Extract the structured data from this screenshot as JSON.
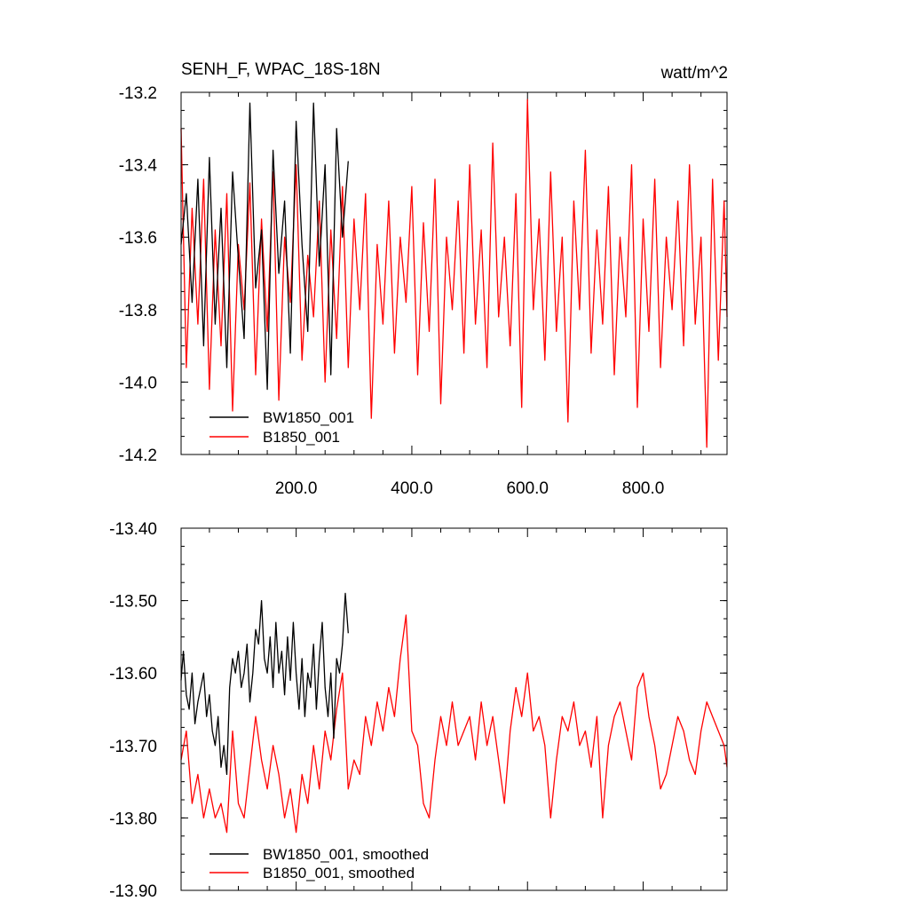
{
  "chart_data": [
    {
      "type": "line",
      "title_left": "SENH_F, WPAC_18S-18N",
      "title_right": "watt/m^2",
      "xlim": [
        1,
        945
      ],
      "ylim": [
        -14.2,
        -13.2
      ],
      "y_ticks": [
        -13.2,
        -13.4,
        -13.6,
        -13.8,
        -14.0,
        -14.2
      ],
      "y_tick_labels": [
        "-13.2",
        "-13.4",
        "-13.6",
        "-13.8",
        "-14.0",
        "-14.2"
      ],
      "x_ticks": [
        200,
        400,
        600,
        800
      ],
      "x_tick_labels": [
        "200.0",
        "400.0",
        "600.0",
        "800.0"
      ],
      "legend": {
        "placement": "bottom-left"
      },
      "series": [
        {
          "name": "BW1850_001",
          "color": "#000000",
          "x": [
            1,
            10,
            20,
            30,
            40,
            50,
            60,
            70,
            80,
            90,
            100,
            110,
            120,
            130,
            140,
            150,
            160,
            170,
            180,
            190,
            200,
            210,
            220,
            230,
            240,
            250,
            260,
            270,
            280,
            290
          ],
          "y": [
            -13.62,
            -13.48,
            -13.78,
            -13.44,
            -13.9,
            -13.38,
            -13.84,
            -13.52,
            -13.96,
            -13.42,
            -13.66,
            -13.88,
            -13.23,
            -13.74,
            -13.58,
            -14.02,
            -13.36,
            -13.7,
            -13.5,
            -13.92,
            -13.28,
            -13.62,
            -13.86,
            -13.23,
            -13.68,
            -13.4,
            -13.98,
            -13.3,
            -13.6,
            -13.39
          ]
        },
        {
          "name": "B1850_001",
          "color": "#ff0000",
          "x": [
            1,
            10,
            20,
            30,
            40,
            50,
            60,
            70,
            80,
            90,
            100,
            110,
            120,
            130,
            140,
            150,
            160,
            170,
            180,
            190,
            200,
            210,
            220,
            230,
            240,
            250,
            260,
            270,
            280,
            290,
            300,
            310,
            320,
            330,
            340,
            350,
            360,
            370,
            380,
            390,
            400,
            410,
            420,
            430,
            440,
            450,
            460,
            470,
            480,
            490,
            500,
            510,
            520,
            530,
            540,
            550,
            560,
            570,
            580,
            590,
            600,
            610,
            620,
            630,
            640,
            650,
            660,
            670,
            680,
            690,
            700,
            710,
            720,
            730,
            740,
            750,
            760,
            770,
            780,
            790,
            800,
            810,
            820,
            830,
            840,
            850,
            860,
            870,
            880,
            890,
            900,
            910,
            920,
            930,
            940,
            945
          ],
          "y": [
            -13.3,
            -13.96,
            -13.52,
            -13.84,
            -13.44,
            -14.02,
            -13.58,
            -13.9,
            -13.48,
            -14.08,
            -13.62,
            -13.8,
            -13.45,
            -13.98,
            -13.55,
            -13.86,
            -13.42,
            -14.05,
            -13.6,
            -13.78,
            -13.4,
            -13.94,
            -13.65,
            -13.82,
            -13.5,
            -14.0,
            -13.58,
            -13.88,
            -13.46,
            -13.96,
            -13.55,
            -13.8,
            -13.48,
            -14.1,
            -13.62,
            -13.84,
            -13.5,
            -13.92,
            -13.6,
            -13.78,
            -13.46,
            -13.98,
            -13.56,
            -13.86,
            -13.44,
            -14.06,
            -13.6,
            -13.8,
            -13.5,
            -13.92,
            -13.4,
            -13.84,
            -13.58,
            -13.96,
            -13.34,
            -13.82,
            -13.6,
            -13.9,
            -13.48,
            -14.07,
            -13.22,
            -13.8,
            -13.55,
            -13.94,
            -13.42,
            -13.86,
            -13.6,
            -14.11,
            -13.5,
            -13.8,
            -13.36,
            -13.92,
            -13.58,
            -13.84,
            -13.46,
            -13.98,
            -13.6,
            -13.82,
            -13.4,
            -14.07,
            -13.55,
            -13.86,
            -13.44,
            -13.96,
            -13.6,
            -13.8,
            -13.5,
            -13.9,
            -13.4,
            -13.84,
            -13.6,
            -14.18,
            -13.44,
            -13.94,
            -13.5,
            -13.82
          ]
        }
      ]
    },
    {
      "type": "line",
      "xlim": [
        1,
        945
      ],
      "ylim": [
        -13.9,
        -13.4
      ],
      "y_ticks": [
        -13.4,
        -13.5,
        -13.6,
        -13.7,
        -13.8,
        -13.9
      ],
      "y_tick_labels": [
        "-13.40",
        "-13.50",
        "-13.60",
        "-13.70",
        "-13.80",
        "-13.90"
      ],
      "x_ticks": [
        200,
        400,
        600,
        800
      ],
      "legend": {
        "placement": "bottom-left"
      },
      "series": [
        {
          "name": "BW1850_001, smoothed",
          "color": "#000000",
          "x": [
            1,
            5,
            10,
            15,
            20,
            25,
            30,
            35,
            40,
            45,
            50,
            55,
            60,
            65,
            70,
            75,
            80,
            85,
            90,
            95,
            100,
            105,
            110,
            115,
            120,
            125,
            130,
            135,
            140,
            145,
            150,
            155,
            160,
            165,
            170,
            175,
            180,
            185,
            190,
            195,
            200,
            205,
            210,
            215,
            220,
            225,
            230,
            235,
            240,
            245,
            250,
            255,
            260,
            265,
            270,
            275,
            280,
            285,
            290
          ],
          "y": [
            -13.61,
            -13.57,
            -13.63,
            -13.65,
            -13.6,
            -13.67,
            -13.64,
            -13.62,
            -13.6,
            -13.66,
            -13.63,
            -13.68,
            -13.7,
            -13.66,
            -13.73,
            -13.7,
            -13.74,
            -13.62,
            -13.58,
            -13.6,
            -13.57,
            -13.62,
            -13.6,
            -13.56,
            -13.64,
            -13.6,
            -13.54,
            -13.56,
            -13.5,
            -13.58,
            -13.6,
            -13.55,
            -13.62,
            -13.53,
            -13.6,
            -13.57,
            -13.63,
            -13.55,
            -13.61,
            -13.53,
            -13.6,
            -13.65,
            -13.58,
            -13.66,
            -13.6,
            -13.62,
            -13.56,
            -13.65,
            -13.58,
            -13.53,
            -13.62,
            -13.66,
            -13.6,
            -13.69,
            -13.58,
            -13.6,
            -13.56,
            -13.49,
            -13.545
          ]
        },
        {
          "name": "B1850_001, smoothed",
          "color": "#ff0000",
          "x": [
            1,
            10,
            20,
            30,
            40,
            50,
            60,
            70,
            80,
            90,
            100,
            110,
            120,
            130,
            140,
            150,
            160,
            170,
            180,
            190,
            200,
            210,
            220,
            230,
            240,
            250,
            260,
            270,
            280,
            290,
            300,
            310,
            320,
            330,
            340,
            350,
            360,
            370,
            380,
            390,
            400,
            410,
            420,
            430,
            440,
            450,
            460,
            470,
            480,
            490,
            500,
            510,
            520,
            530,
            540,
            550,
            560,
            570,
            580,
            590,
            600,
            610,
            620,
            630,
            640,
            650,
            660,
            670,
            680,
            690,
            700,
            710,
            720,
            730,
            740,
            750,
            760,
            770,
            780,
            790,
            800,
            810,
            820,
            830,
            840,
            850,
            860,
            870,
            880,
            890,
            900,
            910,
            920,
            930,
            940,
            945
          ],
          "y": [
            -13.72,
            -13.68,
            -13.78,
            -13.74,
            -13.8,
            -13.76,
            -13.8,
            -13.78,
            -13.82,
            -13.68,
            -13.78,
            -13.8,
            -13.73,
            -13.66,
            -13.72,
            -13.76,
            -13.7,
            -13.74,
            -13.8,
            -13.76,
            -13.82,
            -13.74,
            -13.78,
            -13.7,
            -13.76,
            -13.68,
            -13.72,
            -13.65,
            -13.6,
            -13.76,
            -13.72,
            -13.74,
            -13.66,
            -13.7,
            -13.64,
            -13.68,
            -13.62,
            -13.66,
            -13.58,
            -13.52,
            -13.68,
            -13.7,
            -13.78,
            -13.8,
            -13.72,
            -13.66,
            -13.7,
            -13.64,
            -13.7,
            -13.68,
            -13.66,
            -13.72,
            -13.64,
            -13.7,
            -13.66,
            -13.72,
            -13.78,
            -13.68,
            -13.62,
            -13.66,
            -13.6,
            -13.68,
            -13.66,
            -13.7,
            -13.8,
            -13.72,
            -13.66,
            -13.68,
            -13.64,
            -13.7,
            -13.68,
            -13.73,
            -13.66,
            -13.8,
            -13.7,
            -13.66,
            -13.64,
            -13.68,
            -13.72,
            -13.62,
            -13.6,
            -13.66,
            -13.7,
            -13.76,
            -13.74,
            -13.7,
            -13.66,
            -13.68,
            -13.72,
            -13.74,
            -13.68,
            -13.64,
            -13.66,
            -13.68,
            -13.7,
            -13.73
          ]
        }
      ]
    }
  ]
}
